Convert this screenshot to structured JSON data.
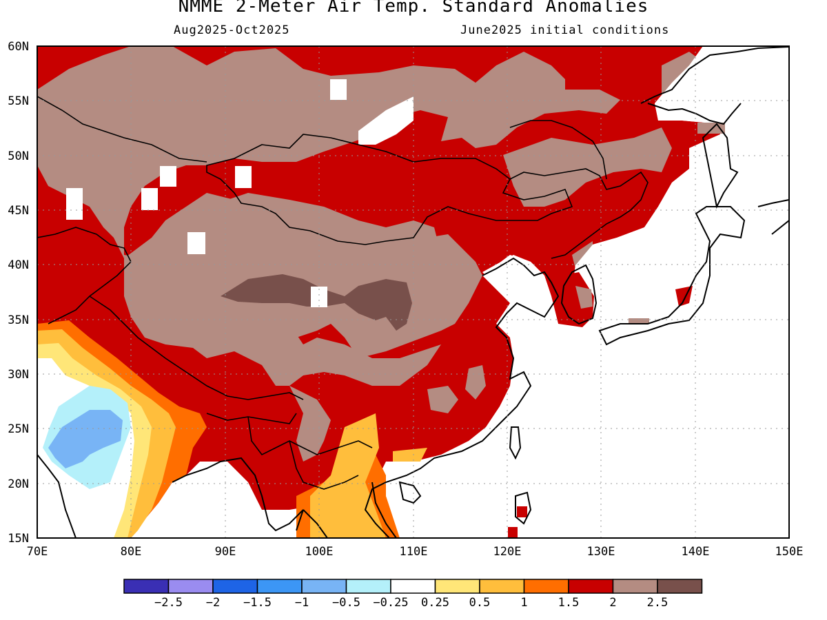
{
  "header": {
    "title": "NMME 2-Meter Air Temp. Standard Anomalies",
    "period": "Aug2025-Oct2025",
    "conditions": "June2025 initial conditions"
  },
  "map": {
    "region": "East Asia",
    "lon_ticks": [
      "70E",
      "80E",
      "90E",
      "100E",
      "110E",
      "120E",
      "130E",
      "140E",
      "150E"
    ],
    "lat_ticks": [
      "15N",
      "20N",
      "25N",
      "30N",
      "35N",
      "40N",
      "45N",
      "50N",
      "55N",
      "60N"
    ],
    "lon_range": [
      70,
      150
    ],
    "lat_range": [
      15,
      60
    ],
    "grid": "dotted",
    "ocean_color": "#ffffff",
    "coastline_color": "#000000"
  },
  "legend": {
    "colors": [
      "#3a2fb4",
      "#9a8cf0",
      "#1e64e6",
      "#3c96f5",
      "#78b4f5",
      "#b4f0fa",
      "#ffffff",
      "#ffe678",
      "#ffbe3c",
      "#ff6e00",
      "#c80000",
      "#b48c82",
      "#78504b"
    ],
    "labels": [
      "-2.5",
      "-2",
      "-1.5",
      "-1",
      "-0.5",
      "-0.25",
      "0.25",
      "0.5",
      "1",
      "1.5",
      "2",
      "2.5"
    ]
  },
  "chart_data": {
    "type": "heatmap",
    "title": "NMME 2-Meter Air Temp. Standard Anomalies",
    "variable": "2-meter air temperature standard anomaly",
    "period": "Aug2025-Oct2025",
    "x_range": [
      70,
      150
    ],
    "y_range": [
      15,
      60
    ],
    "category_levels": [
      {
        "range": "< -2.5",
        "color": "#3a2fb4"
      },
      {
        "range": "-2.5 to -2",
        "color": "#9a8cf0"
      },
      {
        "range": "-2 to -1.5",
        "color": "#1e64e6"
      },
      {
        "range": "-1.5 to -1",
        "color": "#3c96f5"
      },
      {
        "range": "-1 to -0.5",
        "color": "#78b4f5"
      },
      {
        "range": "-0.5 to -0.25",
        "color": "#b4f0fa"
      },
      {
        "range": "-0.25 to 0.25",
        "color": "#ffffff"
      },
      {
        "range": "0.25 to 0.5",
        "color": "#ffe678"
      },
      {
        "range": "0.5 to 1",
        "color": "#ffbe3c"
      },
      {
        "range": "1 to 1.5",
        "color": "#ff6e00"
      },
      {
        "range": "1.5 to 2",
        "color": "#c80000"
      },
      {
        "range": "2 to 2.5",
        "color": "#b48c82"
      },
      {
        "range": "> 2.5",
        "color": "#78504b"
      }
    ]
  }
}
